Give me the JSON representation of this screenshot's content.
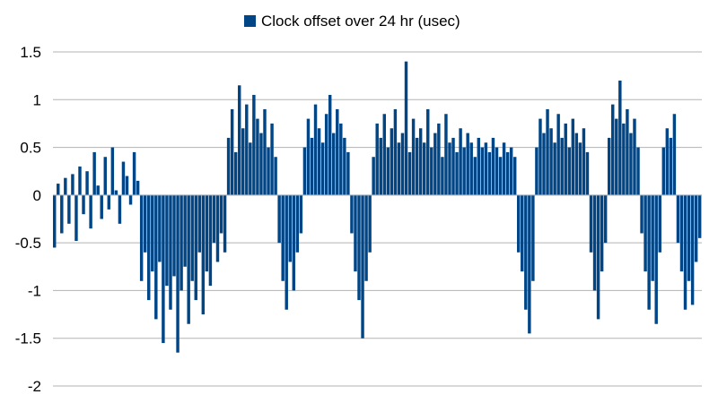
{
  "chart_data": {
    "type": "bar",
    "title": "",
    "xlabel": "",
    "ylabel": "",
    "ylim": [
      -2,
      1.5
    ],
    "yticks": [
      1.5,
      1,
      0.5,
      0,
      -0.5,
      -1,
      -1.5,
      -2
    ],
    "ytick_labels": [
      "1.5",
      "1",
      "0.5",
      "0",
      "-0.5",
      "-1",
      "-1.5",
      "-2"
    ],
    "grid": true,
    "legend_position": "top-center",
    "series": [
      {
        "name": "Clock offset over 24 hr (usec)",
        "color": "#004586",
        "values": [
          -0.55,
          0.12,
          -0.4,
          0.18,
          -0.3,
          0.22,
          -0.48,
          0.3,
          -0.2,
          0.25,
          -0.35,
          0.45,
          0.1,
          -0.25,
          0.4,
          -0.15,
          0.5,
          0.05,
          -0.3,
          0.35,
          0.2,
          -0.1,
          0.45,
          0.15,
          -0.9,
          -0.6,
          -1.1,
          -0.8,
          -1.3,
          -0.7,
          -1.55,
          -0.95,
          -1.2,
          -0.85,
          -1.65,
          -1.0,
          -0.75,
          -1.35,
          -0.9,
          -1.1,
          -0.6,
          -1.25,
          -0.8,
          -0.95,
          -0.5,
          -0.7,
          -0.4,
          -0.6,
          0.6,
          0.9,
          0.45,
          1.15,
          0.7,
          0.95,
          0.55,
          1.05,
          0.8,
          0.65,
          0.9,
          0.5,
          0.75,
          0.4,
          -0.5,
          -0.9,
          -1.2,
          -0.7,
          -1.0,
          -0.6,
          -0.4,
          0.5,
          0.8,
          0.6,
          0.95,
          0.7,
          0.55,
          0.85,
          1.05,
          0.65,
          0.9,
          0.75,
          0.6,
          0.45,
          -0.4,
          -0.8,
          -1.1,
          -1.5,
          -0.9,
          -0.6,
          0.4,
          0.75,
          0.6,
          0.85,
          0.5,
          0.7,
          0.9,
          0.55,
          0.65,
          1.4,
          0.45,
          0.8,
          0.6,
          0.7,
          0.55,
          0.9,
          0.5,
          0.65,
          0.75,
          0.4,
          0.85,
          0.55,
          0.6,
          0.45,
          0.7,
          0.5,
          0.65,
          0.55,
          0.4,
          0.6,
          0.5,
          0.55,
          0.45,
          0.6,
          0.5,
          0.4,
          0.55,
          0.45,
          0.5,
          0.4,
          -0.6,
          -0.8,
          -1.2,
          -1.45,
          -0.9,
          0.5,
          0.8,
          0.65,
          0.9,
          0.7,
          0.55,
          0.85,
          0.6,
          0.75,
          0.5,
          0.8,
          0.65,
          0.55,
          0.7,
          0.45,
          -0.6,
          -1.0,
          -1.3,
          -0.8,
          -0.5,
          0.6,
          0.95,
          0.8,
          1.2,
          0.75,
          0.9,
          0.65,
          0.8,
          0.5,
          -0.4,
          -0.8,
          -1.2,
          -0.9,
          -1.35,
          -0.6,
          0.5,
          0.7,
          0.6,
          0.85,
          -0.5,
          -0.8,
          -1.2,
          -0.9,
          -1.15,
          -0.7,
          -0.45
        ]
      }
    ]
  }
}
